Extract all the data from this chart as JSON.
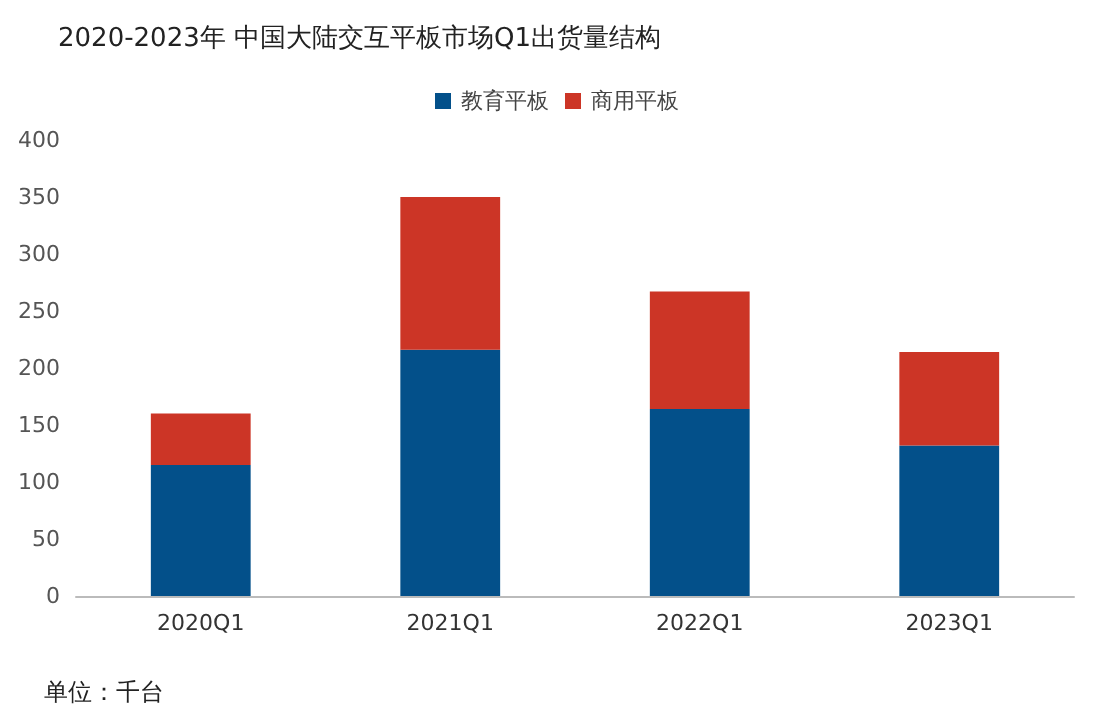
{
  "chart_data": {
    "type": "bar",
    "title": "2020-2023年 中国大陆交互平板市场Q1出货量结构",
    "categories": [
      "2020Q1",
      "2021Q1",
      "2022Q1",
      "2023Q1"
    ],
    "stacked": true,
    "series": [
      {
        "name": "教育平板",
        "color": "#03508a",
        "values": [
          115,
          216,
          164,
          132
        ]
      },
      {
        "name": "商用平板",
        "color": "#cc3526",
        "values": [
          45,
          134,
          103,
          82
        ]
      }
    ],
    "ylim": [
      0,
      400
    ],
    "yticks": [
      0,
      50,
      100,
      150,
      200,
      250,
      300,
      350,
      400
    ],
    "grid": false,
    "legend": "top",
    "annotations": [
      "单位：千台"
    ]
  }
}
